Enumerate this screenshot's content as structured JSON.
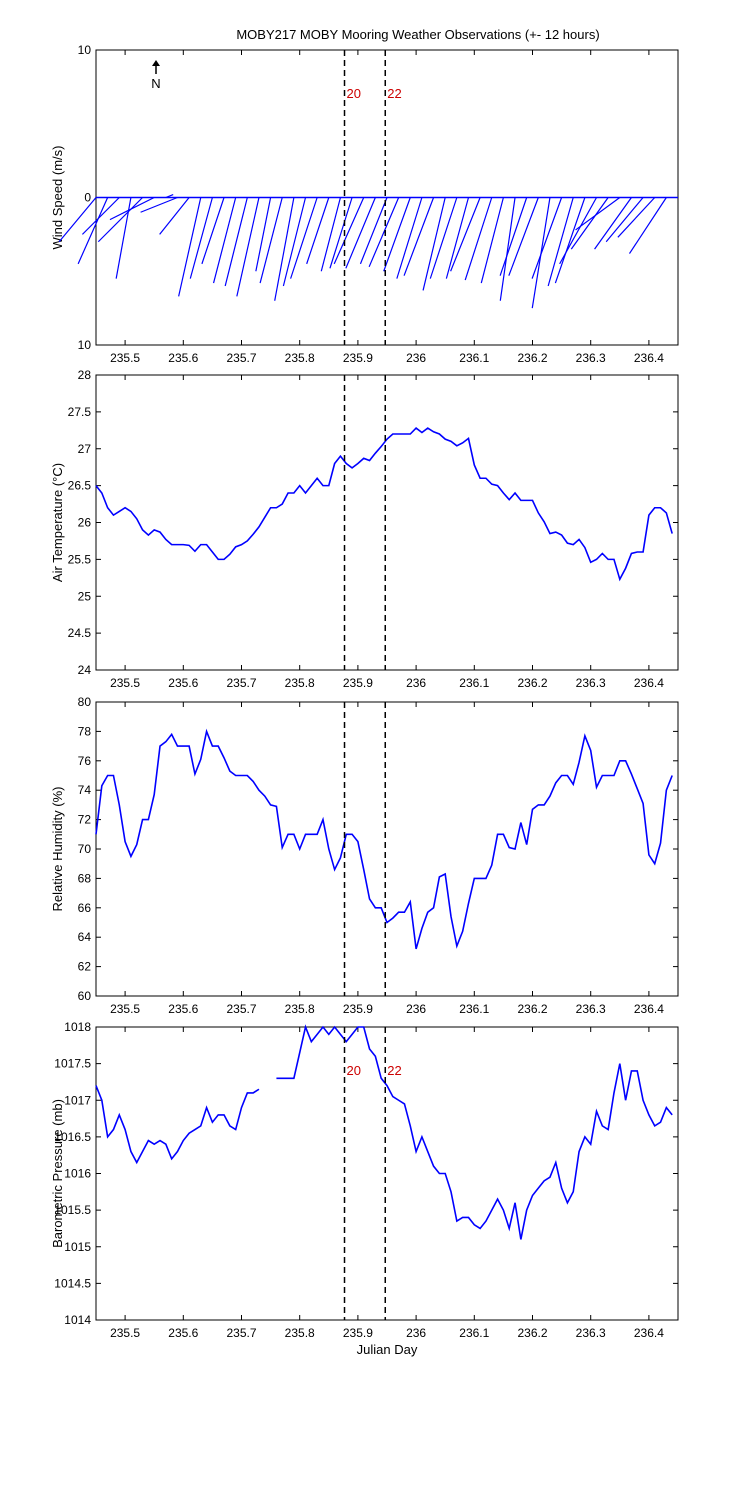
{
  "chart_data": [
    {
      "type": "feather",
      "title": "MOBY217 MOBY Mooring Weather Observations (+- 12 hours)",
      "ylabel": "Wind Speed (m/s)",
      "annotations": [
        "N"
      ],
      "color": "#0000ff",
      "xlim": [
        235.45,
        236.45
      ],
      "xticks": [
        235.5,
        235.6,
        235.7,
        235.8,
        235.9,
        236,
        236.1,
        236.2,
        236.3,
        236.4
      ],
      "ylim": [
        -10,
        10
      ],
      "yticks": [
        {
          "value": -10,
          "label": "10"
        },
        0,
        10
      ],
      "vlines": [
        {
          "x": 235.877,
          "label": "20"
        },
        {
          "x": 235.947,
          "label": "22"
        }
      ],
      "vline_label_color": "#cc0000",
      "x": [
        235.45,
        235.47,
        235.49,
        235.51,
        235.53,
        235.55,
        235.57,
        235.59,
        235.61,
        235.63,
        235.65,
        235.67,
        235.69,
        235.71,
        235.73,
        235.75,
        235.77,
        235.79,
        235.81,
        235.83,
        235.85,
        235.87,
        235.89,
        235.91,
        235.93,
        235.95,
        235.97,
        235.99,
        236.01,
        236.03,
        236.05,
        236.07,
        236.09,
        236.11,
        236.13,
        236.15,
        236.17,
        236.19,
        236.21,
        236.23,
        236.25,
        236.27,
        236.29,
        236.31,
        236.33,
        236.35,
        236.37,
        236.39,
        236.41,
        236.43
      ],
      "u": [
        -2.5,
        -2,
        -2.5,
        -1,
        -3,
        -3,
        0.5,
        -2.5,
        -2,
        -1.5,
        -1.5,
        -1.5,
        -1.5,
        -1.5,
        -1.5,
        -1,
        -1.5,
        -1.3,
        -1.5,
        -1.8,
        -1.5,
        -1.3,
        -1.5,
        -2,
        -2,
        -1.8,
        -2,
        -1.8,
        -1.7,
        -2,
        -1.5,
        -1.8,
        -1.5,
        -2,
        -1.8,
        -1.5,
        -1,
        -1.8,
        -2,
        -1.2,
        -2,
        -1.7,
        -2,
        -2.5,
        -2.5,
        -3,
        -2.5,
        -2.5,
        -2.5,
        -2.5
      ],
      "v": [
        -3,
        -4.5,
        -2.5,
        -5.5,
        -3,
        -1.5,
        0.2,
        -1,
        -2.5,
        -6.7,
        -5.5,
        -4.5,
        -5.8,
        -6,
        -6.7,
        -5,
        -5.8,
        -7,
        -6,
        -5.5,
        -4.5,
        -5,
        -4.8,
        -4.5,
        -4.8,
        -4.5,
        -4.7,
        -5,
        -5.5,
        -5.3,
        -6.3,
        -5.5,
        -5.5,
        -5,
        -5.6,
        -5.8,
        -7,
        -5.3,
        -5.3,
        -7.5,
        -5.5,
        -6,
        -5.8,
        -4.5,
        -3.5,
        -2.2,
        -3.5,
        -3,
        -2.7,
        -3.8
      ]
    },
    {
      "type": "line",
      "ylabel": "Air Temperature (°C)",
      "color": "#0000ff",
      "xlim": [
        235.45,
        236.45
      ],
      "xticks": [
        235.5,
        235.6,
        235.7,
        235.8,
        235.9,
        236,
        236.1,
        236.2,
        236.3,
        236.4
      ],
      "ylim": [
        24,
        28
      ],
      "yticks": [
        24,
        24.5,
        25,
        25.5,
        26,
        26.5,
        27,
        27.5,
        28
      ],
      "vlines": [
        {
          "x": 235.877
        },
        {
          "x": 235.947
        }
      ],
      "x": [
        235.45,
        235.46,
        235.47,
        235.48,
        235.49,
        235.5,
        235.51,
        235.52,
        235.53,
        235.54,
        235.55,
        235.56,
        235.57,
        235.58,
        235.59,
        235.6,
        235.61,
        235.62,
        235.63,
        235.64,
        235.65,
        235.66,
        235.67,
        235.68,
        235.69,
        235.7,
        235.71,
        235.72,
        235.73,
        235.74,
        235.75,
        235.76,
        235.77,
        235.78,
        235.79,
        235.8,
        235.81,
        235.82,
        235.83,
        235.84,
        235.85,
        235.86,
        235.87,
        235.88,
        235.89,
        235.9,
        235.91,
        235.92,
        235.93,
        235.94,
        235.95,
        235.96,
        235.97,
        235.98,
        235.99,
        236,
        236.01,
        236.02,
        236.03,
        236.04,
        236.05,
        236.06,
        236.07,
        236.08,
        236.09,
        236.1,
        236.11,
        236.12,
        236.13,
        236.14,
        236.15,
        236.16,
        236.17,
        236.18,
        236.19,
        236.2,
        236.21,
        236.22,
        236.23,
        236.24,
        236.25,
        236.26,
        236.27,
        236.28,
        236.29,
        236.3,
        236.31,
        236.32,
        236.33,
        236.34,
        236.35,
        236.36,
        236.37,
        236.38,
        236.39,
        236.4,
        236.41,
        236.42,
        236.43,
        236.44
      ],
      "values": [
        26.5,
        26.4,
        26.2,
        26.1,
        26.15,
        26.2,
        26.15,
        26.05,
        25.9,
        25.83,
        25.9,
        25.87,
        25.77,
        25.7,
        25.7,
        25.7,
        25.69,
        25.61,
        25.7,
        25.7,
        25.6,
        25.5,
        25.5,
        25.57,
        25.67,
        25.7,
        25.75,
        25.84,
        25.94,
        26.07,
        26.2,
        26.2,
        26.25,
        26.4,
        26.4,
        26.5,
        26.4,
        26.5,
        26.6,
        26.5,
        26.5,
        26.8,
        26.9,
        26.8,
        26.74,
        26.8,
        26.87,
        26.84,
        26.94,
        27.03,
        27.13,
        27.2,
        27.2,
        27.2,
        27.2,
        27.28,
        27.22,
        27.28,
        27.23,
        27.2,
        27.13,
        27.1,
        27.04,
        27.08,
        27.14,
        26.78,
        26.6,
        26.6,
        26.52,
        26.5,
        26.4,
        26.31,
        26.4,
        26.3,
        26.3,
        26.3,
        26.13,
        26.01,
        25.85,
        25.87,
        25.83,
        25.72,
        25.7,
        25.77,
        25.66,
        25.46,
        25.5,
        25.58,
        25.5,
        25.5,
        25.23,
        25.38,
        25.58,
        25.6,
        25.6,
        26.1,
        26.2,
        26.2,
        26.13,
        25.85
      ]
    },
    {
      "type": "line",
      "ylabel": "Relative Humidity (%)",
      "color": "#0000ff",
      "xlim": [
        235.45,
        236.45
      ],
      "xticks": [
        235.5,
        235.6,
        235.7,
        235.8,
        235.9,
        236,
        236.1,
        236.2,
        236.3,
        236.4
      ],
      "ylim": [
        60,
        80
      ],
      "yticks": [
        60,
        62,
        64,
        66,
        68,
        70,
        72,
        74,
        76,
        78,
        80
      ],
      "vlines": [
        {
          "x": 235.877
        },
        {
          "x": 235.947
        }
      ],
      "x": [
        235.45,
        235.46,
        235.47,
        235.48,
        235.49,
        235.5,
        235.51,
        235.52,
        235.53,
        235.54,
        235.55,
        235.56,
        235.57,
        235.58,
        235.59,
        235.6,
        235.61,
        235.62,
        235.63,
        235.64,
        235.65,
        235.66,
        235.67,
        235.68,
        235.69,
        235.7,
        235.71,
        235.72,
        235.73,
        235.74,
        235.75,
        235.76,
        235.77,
        235.78,
        235.79,
        235.8,
        235.81,
        235.82,
        235.83,
        235.84,
        235.85,
        235.86,
        235.87,
        235.88,
        235.89,
        235.9,
        235.91,
        235.92,
        235.93,
        235.94,
        235.95,
        235.96,
        235.97,
        235.98,
        235.99,
        236,
        236.01,
        236.02,
        236.03,
        236.04,
        236.05,
        236.06,
        236.07,
        236.08,
        236.09,
        236.1,
        236.11,
        236.12,
        236.13,
        236.14,
        236.15,
        236.16,
        236.17,
        236.18,
        236.19,
        236.2,
        236.21,
        236.22,
        236.23,
        236.24,
        236.25,
        236.26,
        236.27,
        236.28,
        236.29,
        236.3,
        236.31,
        236.32,
        236.33,
        236.34,
        236.35,
        236.36,
        236.37,
        236.38,
        236.39,
        236.4,
        236.41,
        236.42,
        236.43,
        236.44
      ],
      "values": [
        71,
        74.3,
        75,
        75,
        73,
        70.5,
        69.5,
        70.3,
        72,
        72,
        73.7,
        77,
        77.3,
        77.8,
        77,
        77,
        77,
        75.1,
        76.1,
        78,
        77,
        77,
        76.2,
        75.3,
        75,
        75,
        75,
        74.6,
        74,
        73.6,
        73,
        72.9,
        70.1,
        71,
        71,
        70,
        71,
        71,
        71,
        72,
        70,
        68.6,
        69.4,
        71,
        71,
        70.5,
        68.6,
        66.6,
        66,
        66,
        65,
        65.3,
        65.7,
        65.7,
        66.4,
        63.2,
        64.6,
        65.7,
        66,
        68.1,
        68.3,
        65.4,
        63.4,
        64.4,
        66.3,
        68,
        68,
        68,
        68.9,
        71,
        71,
        70.1,
        70,
        71.8,
        70.3,
        72.7,
        73,
        73,
        73.6,
        74.5,
        75,
        75,
        74.4,
        75.9,
        77.7,
        76.7,
        74.2,
        75,
        75,
        75,
        76,
        76,
        75.1,
        74.1,
        73.1,
        69.6,
        69,
        70.4,
        74,
        75
      ]
    },
    {
      "type": "line",
      "ylabel": "Barometric Pressure (mb)",
      "xlabel": "Julian Day",
      "color": "#0000ff",
      "xlim": [
        235.45,
        236.45
      ],
      "xticks": [
        235.5,
        235.6,
        235.7,
        235.8,
        235.9,
        236,
        236.1,
        236.2,
        236.3,
        236.4
      ],
      "ylim": [
        1014,
        1018
      ],
      "yticks": [
        1014,
        1014.5,
        1015,
        1015.5,
        1016,
        1016.5,
        1017,
        1017.5,
        1018
      ],
      "vlines": [
        {
          "x": 235.877,
          "label": "20"
        },
        {
          "x": 235.947,
          "label": "22"
        }
      ],
      "vline_label_color": "#cc0000",
      "x": [
        235.45,
        235.46,
        235.47,
        235.48,
        235.49,
        235.5,
        235.51,
        235.52,
        235.53,
        235.54,
        235.55,
        235.56,
        235.57,
        235.58,
        235.59,
        235.6,
        235.61,
        235.62,
        235.63,
        235.64,
        235.65,
        235.66,
        235.67,
        235.68,
        235.69,
        235.7,
        235.71,
        235.72,
        235.73,
        235.74,
        235.75,
        235.76,
        235.77,
        235.78,
        235.79,
        235.8,
        235.81,
        235.82,
        235.83,
        235.84,
        235.85,
        235.86,
        235.87,
        235.88,
        235.89,
        235.9,
        235.91,
        235.92,
        235.93,
        235.94,
        235.95,
        235.96,
        235.97,
        235.98,
        235.99,
        236,
        236.01,
        236.02,
        236.03,
        236.04,
        236.05,
        236.06,
        236.07,
        236.08,
        236.09,
        236.1,
        236.11,
        236.12,
        236.13,
        236.14,
        236.15,
        236.16,
        236.17,
        236.18,
        236.19,
        236.2,
        236.21,
        236.22,
        236.23,
        236.24,
        236.25,
        236.26,
        236.27,
        236.28,
        236.29,
        236.3,
        236.31,
        236.32,
        236.33,
        236.34,
        236.35,
        236.36,
        236.37,
        236.38,
        236.39,
        236.4,
        236.41,
        236.42,
        236.43,
        236.44
      ],
      "values": [
        1017.2,
        1017,
        1016.5,
        1016.6,
        1016.8,
        1016.6,
        1016.3,
        1016.15,
        1016.3,
        1016.45,
        1016.4,
        1016.45,
        1016.4,
        1016.2,
        1016.3,
        1016.45,
        1016.55,
        1016.6,
        1016.65,
        1016.9,
        1016.7,
        1016.8,
        1016.8,
        1016.65,
        1016.6,
        1016.9,
        1017.1,
        1017.1,
        1017.15,
        null,
        null,
        1017.3,
        1017.3,
        1017.3,
        1017.3,
        1017.65,
        1018,
        1017.8,
        1017.9,
        1018,
        1017.9,
        1018,
        1017.9,
        1017.8,
        1017.9,
        1018,
        1018,
        1017.7,
        1017.6,
        1017.3,
        1017.2,
        1017.05,
        1017,
        1016.95,
        1016.65,
        1016.3,
        1016.5,
        1016.3,
        1016.1,
        1016,
        1016,
        1015.75,
        1015.35,
        1015.4,
        1015.4,
        1015.3,
        1015.25,
        1015.35,
        1015.5,
        1015.65,
        1015.5,
        1015.25,
        1015.6,
        1015.1,
        1015.5,
        1015.7,
        1015.8,
        1015.9,
        1015.95,
        1016.15,
        1015.8,
        1015.6,
        1015.75,
        1016.3,
        1016.5,
        1016.4,
        1016.85,
        1016.65,
        1016.6,
        1017.1,
        1017.5,
        1017,
        1017.4,
        1017.4,
        1017,
        1016.8,
        1016.65,
        1016.7,
        1016.9,
        1016.8
      ]
    }
  ]
}
